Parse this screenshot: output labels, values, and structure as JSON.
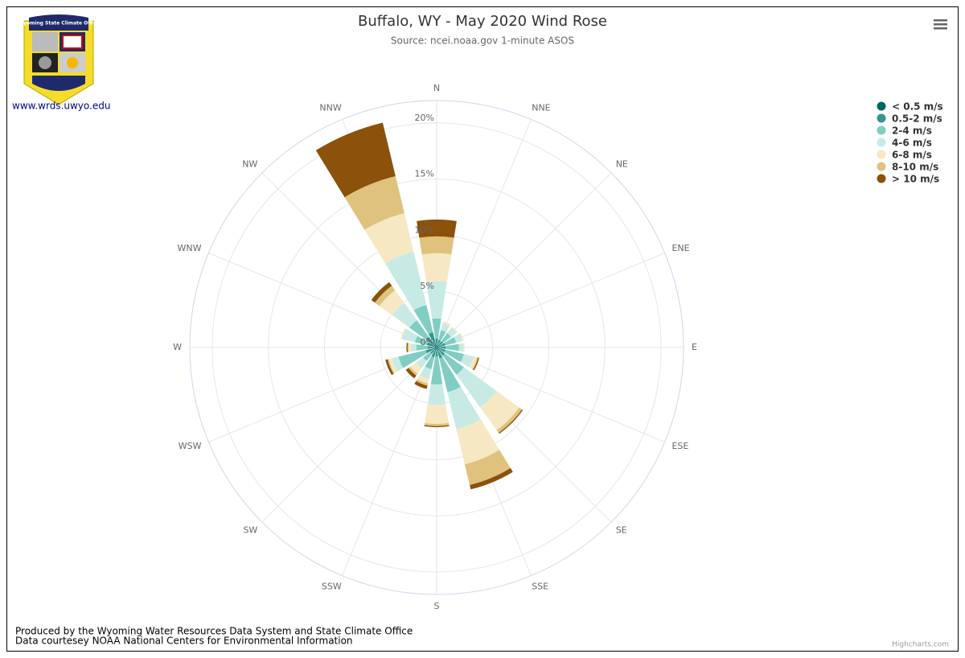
{
  "header": {
    "logo_title": "Wyoming State Climate Office",
    "link": "www.wrds.uwyo.edu"
  },
  "chart_data": {
    "type": "windrose",
    "title": "Buffalo, WY - May 2020 Wind Rose",
    "subtitle": "Source: ncei.noaa.gov 1-minute ASOS",
    "categories": [
      "N",
      "NNE",
      "NE",
      "ENE",
      "E",
      "ESE",
      "SE",
      "SSE",
      "S",
      "SSW",
      "SW",
      "WSW",
      "W",
      "WNW",
      "NW",
      "NNW"
    ],
    "ylim": [
      0,
      22
    ],
    "yticks": [
      {
        "value": 0,
        "label": "0%"
      },
      {
        "value": 5,
        "label": "5%"
      },
      {
        "value": 10,
        "label": "10%"
      },
      {
        "value": 15,
        "label": "15%"
      },
      {
        "value": 20,
        "label": "20%"
      }
    ],
    "grid": true,
    "stacked": true,
    "legend": "top-right",
    "series": [
      {
        "name": "< 0.5 m/s",
        "color": "#01665e",
        "values": [
          0.2,
          0.2,
          0.2,
          0.2,
          0.2,
          0.2,
          0.2,
          0.2,
          0.2,
          0.2,
          0.2,
          0.2,
          0.2,
          0.2,
          0.3,
          0.3
        ]
      },
      {
        "name": "0.5-2 m/s",
        "color": "#35978f",
        "values": [
          0.6,
          0.5,
          0.5,
          0.6,
          0.6,
          0.6,
          0.7,
          0.8,
          0.6,
          0.7,
          0.5,
          0.8,
          0.6,
          0.7,
          0.9,
          1.1
        ]
      },
      {
        "name": "2-4 m/s",
        "color": "#80cdc1",
        "values": [
          1.8,
          0.9,
          0.9,
          1.0,
          1.2,
          1.7,
          2.1,
          3.1,
          2.5,
          1.1,
          0.8,
          2.5,
          1.0,
          1.1,
          1.8,
          2.5
        ]
      },
      {
        "name": "4-6 m/s",
        "color": "#c7eae5",
        "values": [
          3.3,
          0.6,
          0.6,
          0.6,
          0.4,
          0.9,
          3.6,
          3.4,
          1.8,
          0.9,
          0.8,
          0.6,
          0.5,
          1.2,
          1.9,
          4.9
        ]
      },
      {
        "name": "6-8 m/s",
        "color": "#f6e8c3",
        "values": [
          2.5,
          0.2,
          0.1,
          0.1,
          0.1,
          0.3,
          2.5,
          3.2,
          1.7,
          0.4,
          0.6,
          0.3,
          0.2,
          0.1,
          1.4,
          3.5
        ]
      },
      {
        "name": "8-10 m/s",
        "color": "#dfc27d",
        "values": [
          1.5,
          0,
          0,
          0,
          0,
          0.1,
          0.3,
          1.9,
          0.2,
          0.2,
          0.2,
          0.1,
          0.1,
          0,
          0.5,
          3.4
        ]
      },
      {
        "name": "> 10 m/s",
        "color": "#8c510a",
        "values": [
          1.5,
          0,
          0,
          0,
          0,
          0.1,
          0.1,
          0.4,
          0.1,
          0.3,
          0.3,
          0.2,
          0.1,
          0,
          0.4,
          4.9
        ]
      }
    ]
  },
  "footer": {
    "credits": [
      "Produced by the Wyoming Water Resources Data System and State Climate Office",
      "Data courtesey NOAA National Centers for Environmental Information"
    ],
    "brand": "Highcharts.com"
  }
}
